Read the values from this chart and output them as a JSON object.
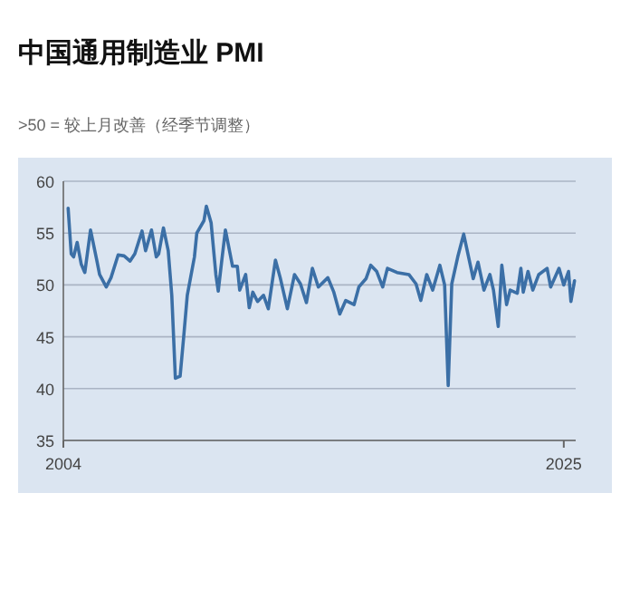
{
  "chart_data": {
    "type": "line",
    "title": "中国通用制造业 PMI",
    "subtitle": ">50 = 较上月改善（经季节调整）",
    "x": [
      2004.2,
      2004.33,
      2004.43,
      2004.58,
      2004.75,
      2004.9,
      2005.14,
      2005.4,
      2005.52,
      2005.8,
      2006.0,
      2006.3,
      2006.55,
      2006.8,
      2007.0,
      2007.3,
      2007.45,
      2007.7,
      2007.9,
      2008.0,
      2008.2,
      2008.4,
      2008.55,
      2008.7,
      2008.9,
      2009.05,
      2009.2,
      2009.5,
      2009.6,
      2009.9,
      2010.0,
      2010.2,
      2010.4,
      2010.5,
      2010.65,
      2010.8,
      2011.1,
      2011.3,
      2011.4,
      2011.65,
      2011.8,
      2011.95,
      2012.15,
      2012.4,
      2012.6,
      2012.9,
      2013.1,
      2013.4,
      2013.7,
      2013.95,
      2014.2,
      2014.45,
      2014.7,
      2015.1,
      2015.35,
      2015.6,
      2015.85,
      2016.2,
      2016.4,
      2016.7,
      2016.9,
      2017.15,
      2017.4,
      2017.6,
      2018.0,
      2018.5,
      2018.8,
      2019.0,
      2019.25,
      2019.5,
      2019.8,
      2020.0,
      2020.15,
      2020.3,
      2020.55,
      2020.8,
      2021.05,
      2021.2,
      2021.4,
      2021.65,
      2021.9,
      2022.05,
      2022.25,
      2022.4,
      2022.6,
      2022.75,
      2023.05,
      2023.2,
      2023.3,
      2023.5,
      2023.7,
      2023.95,
      2024.3,
      2024.45,
      2024.8,
      2025.0,
      2025.2,
      2025.3,
      2025.45
    ],
    "values": [
      57.4,
      53.0,
      52.7,
      54.1,
      52.0,
      51.2,
      55.3,
      52.4,
      51.0,
      49.8,
      50.7,
      52.9,
      52.8,
      52.3,
      53.0,
      55.2,
      53.3,
      55.3,
      52.7,
      53.0,
      55.5,
      53.3,
      49.0,
      41.0,
      41.2,
      45.0,
      49.0,
      52.7,
      55.0,
      56.2,
      57.6,
      56.0,
      51.0,
      49.4,
      52.4,
      55.3,
      51.8,
      51.8,
      49.5,
      51.0,
      47.8,
      49.3,
      48.4,
      49.0,
      47.7,
      52.4,
      50.7,
      47.7,
      51.0,
      50.1,
      48.3,
      51.6,
      49.8,
      50.7,
      49.3,
      47.2,
      48.5,
      48.1,
      49.8,
      50.6,
      51.9,
      51.3,
      49.8,
      51.6,
      51.2,
      51.0,
      50.1,
      48.5,
      51.0,
      49.5,
      51.9,
      50.0,
      40.3,
      50.1,
      52.7,
      54.9,
      52.2,
      50.6,
      52.2,
      49.5,
      51.0,
      49.5,
      46.0,
      51.9,
      48.1,
      49.5,
      49.2,
      51.6,
      49.3,
      51.3,
      49.5,
      51.0,
      51.6,
      49.8,
      51.6,
      50.0,
      51.3,
      48.4,
      50.4
    ],
    "color": "#3b6fa6",
    "xlim": [
      2004,
      2025.5
    ],
    "ylim": [
      35,
      60
    ],
    "xticks": [
      2004,
      2025
    ],
    "yticks": [
      35,
      40,
      45,
      50,
      55,
      60
    ],
    "grid": "y"
  }
}
